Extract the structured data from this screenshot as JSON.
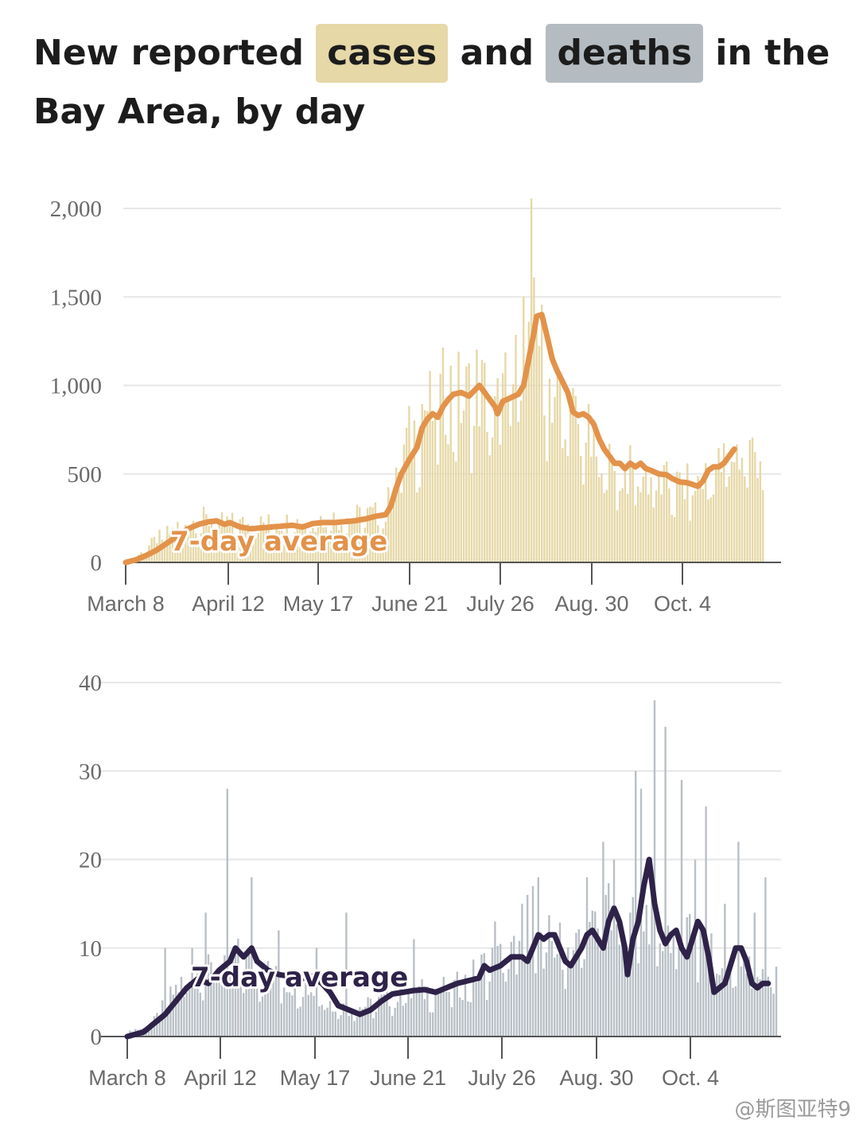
{
  "title": {
    "part1": "New reported",
    "cases_word": "cases",
    "and_word": "and",
    "deaths_word": "deaths",
    "part2": "in the Bay Area, by day"
  },
  "colors": {
    "cases_bar": "#e6d8a7",
    "cases_line": "#e3924a",
    "deaths_bar": "#b9c0c6",
    "deaths_line": "#2e2249",
    "grid": "#e7e7e7",
    "axis": "#555555"
  },
  "watermark": "@斯图亚特9",
  "chart_data": [
    {
      "type": "bar",
      "name": "cases",
      "ylim": [
        0,
        2000
      ],
      "yticks": [
        0,
        500,
        1000,
        1500,
        2000
      ],
      "ytick_labels": [
        "0",
        "500",
        "1,000",
        "1,500",
        "2,000"
      ],
      "xtick_labels": [
        "March 8",
        "April 12",
        "May 17",
        "June 21",
        "July 26",
        "Aug. 30",
        "Oct. 4"
      ],
      "x_range_days": [
        0,
        230
      ],
      "annotation": "7-day average",
      "avg_anchors": [
        [
          0,
          0
        ],
        [
          4,
          15
        ],
        [
          8,
          40
        ],
        [
          12,
          70
        ],
        [
          16,
          110
        ],
        [
          20,
          150
        ],
        [
          24,
          190
        ],
        [
          28,
          215
        ],
        [
          32,
          230
        ],
        [
          35,
          235
        ],
        [
          38,
          215
        ],
        [
          40,
          225
        ],
        [
          44,
          200
        ],
        [
          48,
          190
        ],
        [
          52,
          195
        ],
        [
          56,
          200
        ],
        [
          60,
          205
        ],
        [
          64,
          210
        ],
        [
          68,
          200
        ],
        [
          72,
          220
        ],
        [
          76,
          225
        ],
        [
          80,
          225
        ],
        [
          84,
          230
        ],
        [
          88,
          235
        ],
        [
          92,
          245
        ],
        [
          96,
          260
        ],
        [
          100,
          270
        ],
        [
          102,
          320
        ],
        [
          104,
          420
        ],
        [
          106,
          500
        ],
        [
          109,
          580
        ],
        [
          112,
          650
        ],
        [
          114,
          760
        ],
        [
          116,
          810
        ],
        [
          118,
          840
        ],
        [
          120,
          820
        ],
        [
          122,
          880
        ],
        [
          124,
          920
        ],
        [
          126,
          950
        ],
        [
          129,
          960
        ],
        [
          132,
          940
        ],
        [
          134,
          970
        ],
        [
          136,
          1000
        ],
        [
          138,
          960
        ],
        [
          140,
          920
        ],
        [
          142,
          880
        ],
        [
          143,
          840
        ],
        [
          145,
          910
        ],
        [
          148,
          930
        ],
        [
          151,
          950
        ],
        [
          153,
          1000
        ],
        [
          155,
          1150
        ],
        [
          157,
          1300
        ],
        [
          158,
          1390
        ],
        [
          160,
          1400
        ],
        [
          162,
          1280
        ],
        [
          164,
          1150
        ],
        [
          166,
          1080
        ],
        [
          168,
          1020
        ],
        [
          170,
          960
        ],
        [
          172,
          850
        ],
        [
          174,
          830
        ],
        [
          176,
          840
        ],
        [
          178,
          820
        ],
        [
          180,
          780
        ],
        [
          182,
          700
        ],
        [
          184,
          640
        ],
        [
          186,
          600
        ],
        [
          188,
          560
        ],
        [
          190,
          560
        ],
        [
          192,
          530
        ],
        [
          194,
          560
        ],
        [
          196,
          540
        ],
        [
          198,
          560
        ],
        [
          200,
          530
        ],
        [
          202,
          520
        ],
        [
          205,
          500
        ],
        [
          208,
          495
        ],
        [
          210,
          475
        ],
        [
          213,
          455
        ],
        [
          216,
          450
        ],
        [
          218,
          440
        ],
        [
          220,
          430
        ],
        [
          222,
          460
        ],
        [
          224,
          520
        ],
        [
          226,
          540
        ],
        [
          228,
          540
        ],
        [
          230,
          560
        ],
        [
          232,
          600
        ],
        [
          234,
          640
        ]
      ],
      "daily_anchors": [
        [
          0,
          0
        ],
        [
          6,
          60
        ],
        [
          12,
          150
        ],
        [
          18,
          200
        ],
        [
          24,
          260
        ],
        [
          30,
          270
        ],
        [
          38,
          250
        ],
        [
          48,
          240
        ],
        [
          58,
          250
        ],
        [
          68,
          260
        ],
        [
          76,
          280
        ],
        [
          84,
          270
        ],
        [
          92,
          300
        ],
        [
          100,
          300
        ],
        [
          104,
          600
        ],
        [
          108,
          750
        ],
        [
          112,
          850
        ],
        [
          114,
          1000
        ],
        [
          118,
          950
        ],
        [
          122,
          1050
        ],
        [
          126,
          1100
        ],
        [
          130,
          1000
        ],
        [
          134,
          1150
        ],
        [
          138,
          1050
        ],
        [
          142,
          900
        ],
        [
          146,
          1100
        ],
        [
          150,
          1150
        ],
        [
          154,
          1600
        ],
        [
          156,
          1800
        ],
        [
          158,
          1750
        ],
        [
          160,
          1300
        ],
        [
          164,
          1100
        ],
        [
          168,
          1000
        ],
        [
          172,
          900
        ],
        [
          176,
          850
        ],
        [
          180,
          700
        ],
        [
          186,
          600
        ],
        [
          192,
          580
        ],
        [
          198,
          560
        ],
        [
          206,
          500
        ],
        [
          212,
          480
        ],
        [
          218,
          480
        ],
        [
          224,
          560
        ],
        [
          230,
          620
        ],
        [
          234,
          700
        ]
      ]
    },
    {
      "type": "bar",
      "name": "deaths",
      "ylim": [
        0,
        40
      ],
      "yticks": [
        0,
        10,
        20,
        30,
        40
      ],
      "ytick_labels": [
        "0",
        "10",
        "20",
        "30",
        "40"
      ],
      "xtick_labels": [
        "March 8",
        "April 12",
        "May 17",
        "June 21",
        "July 26",
        "Aug. 30",
        "Oct. 4"
      ],
      "x_range_days": [
        0,
        230
      ],
      "annotation": "7-day average",
      "avg_anchors": [
        [
          0,
          0
        ],
        [
          6,
          0.5
        ],
        [
          10,
          1.5
        ],
        [
          14,
          2.5
        ],
        [
          18,
          4
        ],
        [
          22,
          5.5
        ],
        [
          26,
          6.5
        ],
        [
          30,
          6
        ],
        [
          34,
          7.5
        ],
        [
          38,
          8.5
        ],
        [
          40,
          10
        ],
        [
          43,
          9
        ],
        [
          46,
          10
        ],
        [
          48,
          8.5
        ],
        [
          52,
          7.5
        ],
        [
          56,
          7
        ],
        [
          60,
          6.8
        ],
        [
          64,
          6.5
        ],
        [
          68,
          6.8
        ],
        [
          72,
          6
        ],
        [
          75,
          5
        ],
        [
          78,
          3.5
        ],
        [
          82,
          3
        ],
        [
          86,
          2.5
        ],
        [
          90,
          3
        ],
        [
          94,
          4
        ],
        [
          98,
          4.8
        ],
        [
          102,
          5
        ],
        [
          106,
          5.2
        ],
        [
          110,
          5.3
        ],
        [
          114,
          5
        ],
        [
          118,
          5.5
        ],
        [
          122,
          6
        ],
        [
          126,
          6.3
        ],
        [
          130,
          6.6
        ],
        [
          132,
          8
        ],
        [
          134,
          7.5
        ],
        [
          138,
          8
        ],
        [
          142,
          9
        ],
        [
          146,
          9
        ],
        [
          148,
          8.5
        ],
        [
          150,
          10
        ],
        [
          152,
          11.5
        ],
        [
          154,
          11
        ],
        [
          156,
          11.5
        ],
        [
          158,
          11.5
        ],
        [
          160,
          10
        ],
        [
          162,
          8.5
        ],
        [
          164,
          8
        ],
        [
          166,
          9
        ],
        [
          168,
          10
        ],
        [
          170,
          11.5
        ],
        [
          172,
          12
        ],
        [
          174,
          11
        ],
        [
          176,
          10
        ],
        [
          178,
          13
        ],
        [
          180,
          14.5
        ],
        [
          182,
          13
        ],
        [
          184,
          10
        ],
        [
          185,
          7
        ],
        [
          187,
          11
        ],
        [
          189,
          13
        ],
        [
          191,
          17
        ],
        [
          193,
          20
        ],
        [
          195,
          15
        ],
        [
          197,
          12
        ],
        [
          199,
          10.5
        ],
        [
          201,
          11.5
        ],
        [
          203,
          12
        ],
        [
          205,
          10
        ],
        [
          207,
          9
        ],
        [
          209,
          11
        ],
        [
          211,
          13
        ],
        [
          213,
          12
        ],
        [
          215,
          9
        ],
        [
          217,
          5
        ],
        [
          219,
          5.5
        ],
        [
          221,
          6
        ],
        [
          223,
          8
        ],
        [
          225,
          10
        ],
        [
          227,
          10
        ],
        [
          229,
          8.5
        ],
        [
          231,
          6
        ],
        [
          233,
          5.5
        ],
        [
          235,
          6
        ],
        [
          237,
          6
        ]
      ],
      "daily_anchors": [
        [
          0,
          0.8
        ],
        [
          6,
          1
        ],
        [
          10,
          2
        ],
        [
          14,
          4
        ],
        [
          18,
          6
        ],
        [
          22,
          7
        ],
        [
          26,
          8
        ],
        [
          30,
          8
        ],
        [
          34,
          9
        ],
        [
          36,
          11
        ],
        [
          38,
          8
        ],
        [
          40,
          10
        ],
        [
          44,
          9
        ],
        [
          48,
          8
        ],
        [
          52,
          8
        ],
        [
          56,
          7
        ],
        [
          60,
          7
        ],
        [
          64,
          7
        ],
        [
          68,
          6
        ],
        [
          72,
          5
        ],
        [
          76,
          4
        ],
        [
          82,
          3.5
        ],
        [
          90,
          4
        ],
        [
          98,
          5
        ],
        [
          106,
          5.5
        ],
        [
          114,
          6
        ],
        [
          120,
          6
        ],
        [
          126,
          7
        ],
        [
          132,
          9
        ],
        [
          140,
          10
        ],
        [
          148,
          11
        ],
        [
          156,
          12
        ],
        [
          164,
          11
        ],
        [
          172,
          13
        ],
        [
          178,
          15
        ],
        [
          184,
          14
        ],
        [
          190,
          17
        ],
        [
          196,
          14
        ],
        [
          202,
          13
        ],
        [
          208,
          12
        ],
        [
          214,
          11
        ],
        [
          220,
          8
        ],
        [
          226,
          9
        ],
        [
          232,
          8
        ],
        [
          236,
          8
        ]
      ],
      "spikes": [
        [
          14,
          10
        ],
        [
          24,
          10
        ],
        [
          29,
          14
        ],
        [
          37,
          28
        ],
        [
          46,
          18
        ],
        [
          56,
          12
        ],
        [
          70,
          10
        ],
        [
          81,
          14
        ],
        [
          106,
          11
        ],
        [
          136,
          13
        ],
        [
          146,
          15
        ],
        [
          148,
          16
        ],
        [
          150,
          17
        ],
        [
          152,
          18
        ],
        [
          170,
          18
        ],
        [
          176,
          22
        ],
        [
          177,
          16
        ],
        [
          180,
          20
        ],
        [
          186,
          14
        ],
        [
          188,
          30
        ],
        [
          190,
          28
        ],
        [
          195,
          38
        ],
        [
          199,
          35
        ],
        [
          205,
          29
        ],
        [
          210,
          20
        ],
        [
          214,
          26
        ],
        [
          221,
          15
        ],
        [
          226,
          22
        ],
        [
          232,
          14
        ],
        [
          236,
          18
        ]
      ]
    }
  ]
}
